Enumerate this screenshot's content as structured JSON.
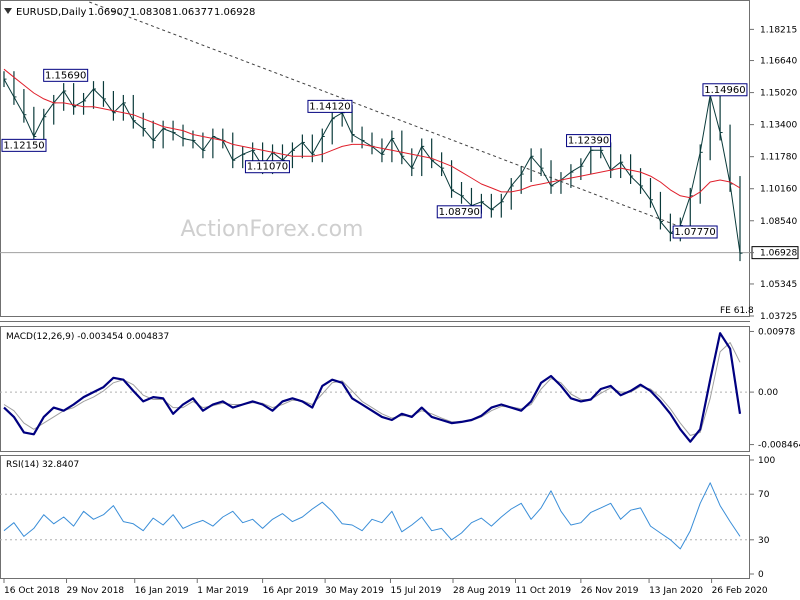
{
  "chart_data": [
    {
      "type": "line",
      "pane": "price",
      "symbol_label": "EURUSD,Daily",
      "ohlc": {
        "open": "1.06907",
        "high": "1.08308",
        "low": "1.06377",
        "close": "1.06928"
      },
      "last_price": "1.06928",
      "ylim": [
        1.03725,
        1.1965
      ],
      "y_ticks": [
        "1.18215",
        "1.16640",
        "1.15020",
        "1.13400",
        "1.11780",
        "1.10160",
        "1.08540",
        "1.06928",
        "1.05345",
        "1.03725"
      ],
      "watermark": "ActionForex.com",
      "fe_label": "FE 61.8",
      "annotations": [
        {
          "text": "1.15690",
          "day": 42,
          "price": 1.1569
        },
        {
          "text": "1.12150",
          "day": 0,
          "price": 1.1215
        },
        {
          "text": "1.14120",
          "day": 228,
          "price": 1.1412
        },
        {
          "text": "1.11070",
          "day": 184,
          "price": 1.1107
        },
        {
          "text": "1.08790",
          "day": 319,
          "price": 1.0879
        },
        {
          "text": "1.12390",
          "day": 410,
          "price": 1.1239
        },
        {
          "text": "1.07770",
          "day": 485,
          "price": 1.0777
        },
        {
          "text": "1.14960",
          "day": 506,
          "price": 1.1496
        }
      ],
      "series": [
        {
          "kind": "price",
          "x": [
            0,
            7,
            14,
            21,
            28,
            35,
            42,
            49,
            56,
            63,
            70,
            77,
            84,
            91,
            98,
            105,
            112,
            119,
            126,
            133,
            140,
            147,
            154,
            161,
            168,
            175,
            182,
            189,
            196,
            203,
            210,
            217,
            224,
            231,
            238,
            245,
            252,
            259,
            266,
            273,
            280,
            287,
            294,
            301,
            308,
            315,
            322,
            329,
            336,
            343,
            350,
            357,
            364,
            371,
            378,
            385,
            392,
            399,
            406,
            413,
            420,
            427,
            434,
            441,
            448,
            455,
            462,
            469,
            476,
            483,
            490,
            497,
            504,
            511,
            518
          ],
          "values": [
            1.157,
            1.148,
            1.139,
            1.128,
            1.138,
            1.145,
            1.151,
            1.143,
            1.146,
            1.152,
            1.147,
            1.14,
            1.145,
            1.136,
            1.132,
            1.126,
            1.132,
            1.13,
            1.127,
            1.126,
            1.121,
            1.128,
            1.126,
            1.116,
            1.119,
            1.121,
            1.113,
            1.12,
            1.116,
            1.121,
            1.125,
            1.119,
            1.128,
            1.137,
            1.14,
            1.129,
            1.126,
            1.123,
            1.119,
            1.127,
            1.118,
            1.112,
            1.123,
            1.116,
            1.112,
            1.101,
            1.098,
            1.093,
            1.095,
            1.091,
            1.095,
            1.103,
            1.109,
            1.118,
            1.112,
            1.103,
            1.106,
            1.11,
            1.113,
            1.121,
            1.121,
            1.111,
            1.115,
            1.108,
            1.103,
            1.096,
            1.085,
            1.079,
            1.083,
            1.098,
            1.12,
            1.149,
            1.13,
            1.104,
            1.069
          ]
        },
        {
          "kind": "sma",
          "x": [
            0,
            7,
            14,
            21,
            28,
            35,
            42,
            49,
            56,
            63,
            70,
            77,
            84,
            91,
            98,
            105,
            112,
            119,
            126,
            133,
            140,
            147,
            154,
            161,
            168,
            175,
            182,
            189,
            196,
            203,
            210,
            217,
            224,
            231,
            238,
            245,
            252,
            259,
            266,
            273,
            280,
            287,
            294,
            301,
            308,
            315,
            322,
            329,
            336,
            343,
            350,
            357,
            364,
            371,
            378,
            385,
            392,
            399,
            406,
            413,
            420,
            427,
            434,
            441,
            448,
            455,
            462,
            469,
            476,
            483,
            490,
            497,
            504,
            511,
            518
          ],
          "values": [
            1.162,
            1.158,
            1.154,
            1.15,
            1.147,
            1.145,
            1.145,
            1.144,
            1.143,
            1.143,
            1.142,
            1.141,
            1.14,
            1.139,
            1.137,
            1.135,
            1.133,
            1.132,
            1.131,
            1.129,
            1.128,
            1.127,
            1.126,
            1.124,
            1.123,
            1.122,
            1.121,
            1.12,
            1.119,
            1.118,
            1.118,
            1.118,
            1.119,
            1.121,
            1.123,
            1.124,
            1.124,
            1.123,
            1.122,
            1.121,
            1.12,
            1.119,
            1.118,
            1.117,
            1.115,
            1.113,
            1.11,
            1.107,
            1.104,
            1.102,
            1.1,
            1.1,
            1.101,
            1.103,
            1.104,
            1.105,
            1.106,
            1.107,
            1.108,
            1.109,
            1.11,
            1.111,
            1.112,
            1.111,
            1.11,
            1.108,
            1.105,
            1.101,
            1.098,
            1.097,
            1.1,
            1.105,
            1.106,
            1.105,
            1.102
          ]
        },
        {
          "kind": "trendline",
          "x": [
            60,
            493
          ],
          "values": [
            1.196,
            1.0777
          ]
        }
      ]
    },
    {
      "type": "line",
      "pane": "macd",
      "label": "MACD(12,26,9) -0.003454 0.004837",
      "ylim": [
        -0.0095,
        0.0105
      ],
      "y_ticks": [
        "0.00978",
        "0.00",
        "-0.008464"
      ],
      "series": [
        {
          "kind": "macd",
          "x": [
            0,
            7,
            14,
            21,
            28,
            35,
            42,
            49,
            56,
            63,
            70,
            77,
            84,
            91,
            98,
            105,
            112,
            119,
            126,
            133,
            140,
            147,
            154,
            161,
            168,
            175,
            182,
            189,
            196,
            203,
            210,
            217,
            224,
            231,
            238,
            245,
            252,
            259,
            266,
            273,
            280,
            287,
            294,
            301,
            308,
            315,
            322,
            329,
            336,
            343,
            350,
            357,
            364,
            371,
            378,
            385,
            392,
            399,
            406,
            413,
            420,
            427,
            434,
            441,
            448,
            455,
            462,
            469,
            476,
            483,
            490,
            497,
            504,
            511,
            518
          ],
          "values": [
            -0.0025,
            -0.004,
            -0.0065,
            -0.0068,
            -0.004,
            -0.0025,
            -0.003,
            -0.002,
            -0.0008,
            -0.0,
            0.0008,
            0.0023,
            0.002,
            0.0002,
            -0.0015,
            -0.0008,
            -0.001,
            -0.0035,
            -0.002,
            -0.001,
            -0.003,
            -0.002,
            -0.0015,
            -0.0025,
            -0.002,
            -0.0015,
            -0.002,
            -0.003,
            -0.0015,
            -0.001,
            -0.0015,
            -0.0025,
            0.001,
            0.002,
            0.0015,
            -0.001,
            -0.002,
            -0.003,
            -0.004,
            -0.0045,
            -0.0035,
            -0.004,
            -0.0025,
            -0.004,
            -0.0045,
            -0.005,
            -0.0048,
            -0.0045,
            -0.0038,
            -0.0025,
            -0.002,
            -0.0025,
            -0.003,
            -0.0015,
            0.0015,
            0.0026,
            0.001,
            -0.001,
            -0.0015,
            -0.0012,
            0.0005,
            0.001,
            -0.0005,
            0.0002,
            0.0012,
            0.0002,
            -0.0015,
            -0.0035,
            -0.006,
            -0.008,
            -0.006,
            0.002,
            0.0095,
            0.007,
            -0.0035
          ]
        },
        {
          "kind": "signal",
          "x": [
            0,
            7,
            14,
            21,
            28,
            35,
            42,
            49,
            56,
            63,
            70,
            77,
            84,
            91,
            98,
            105,
            112,
            119,
            126,
            133,
            140,
            147,
            154,
            161,
            168,
            175,
            182,
            189,
            196,
            203,
            210,
            217,
            224,
            231,
            238,
            245,
            252,
            259,
            266,
            273,
            280,
            287,
            294,
            301,
            308,
            315,
            322,
            329,
            336,
            343,
            350,
            357,
            364,
            371,
            378,
            385,
            392,
            399,
            406,
            413,
            420,
            427,
            434,
            441,
            448,
            455,
            462,
            469,
            476,
            483,
            490,
            497,
            504,
            511,
            518
          ],
          "values": [
            -0.002,
            -0.003,
            -0.005,
            -0.006,
            -0.005,
            -0.004,
            -0.003,
            -0.0025,
            -0.0015,
            -0.0008,
            0.0002,
            0.0015,
            0.002,
            0.0012,
            -0.0005,
            -0.0012,
            -0.0012,
            -0.0025,
            -0.0025,
            -0.0015,
            -0.0025,
            -0.0022,
            -0.0018,
            -0.002,
            -0.002,
            -0.0017,
            -0.0018,
            -0.0025,
            -0.002,
            -0.0013,
            -0.0014,
            -0.002,
            -0.0003,
            0.0015,
            0.0018,
            0.0002,
            -0.0015,
            -0.0025,
            -0.0035,
            -0.0042,
            -0.0038,
            -0.0038,
            -0.003,
            -0.0035,
            -0.0042,
            -0.0048,
            -0.0048,
            -0.0046,
            -0.004,
            -0.003,
            -0.0023,
            -0.0024,
            -0.0027,
            -0.002,
            0.0005,
            0.0022,
            0.0015,
            -0.0003,
            -0.0012,
            -0.0012,
            -0.0002,
            0.0007,
            0.0,
            0.0,
            0.0009,
            0.0005,
            -0.0008,
            -0.0027,
            -0.005,
            -0.007,
            -0.0065,
            -0.001,
            0.0065,
            0.008,
            0.0048
          ]
        }
      ]
    },
    {
      "type": "line",
      "pane": "rsi",
      "label": "RSI(14) 32.8407",
      "ylim": [
        0,
        100
      ],
      "y_ticks": [
        "100",
        "70",
        "30",
        "0"
      ],
      "levels": [
        70,
        30
      ],
      "series": [
        {
          "kind": "rsi",
          "x": [
            0,
            7,
            14,
            21,
            28,
            35,
            42,
            49,
            56,
            63,
            70,
            77,
            84,
            91,
            98,
            105,
            112,
            119,
            126,
            133,
            140,
            147,
            154,
            161,
            168,
            175,
            182,
            189,
            196,
            203,
            210,
            217,
            224,
            231,
            238,
            245,
            252,
            259,
            266,
            273,
            280,
            287,
            294,
            301,
            308,
            315,
            322,
            329,
            336,
            343,
            350,
            357,
            364,
            371,
            378,
            385,
            392,
            399,
            406,
            413,
            420,
            427,
            434,
            441,
            448,
            455,
            462,
            469,
            476,
            483,
            490,
            497,
            504,
            511,
            518
          ],
          "values": [
            38,
            45,
            33,
            40,
            52,
            44,
            50,
            42,
            55,
            48,
            52,
            60,
            46,
            44,
            38,
            49,
            43,
            52,
            40,
            44,
            47,
            42,
            50,
            55,
            45,
            48,
            40,
            48,
            53,
            46,
            50,
            57,
            63,
            55,
            44,
            43,
            38,
            48,
            45,
            55,
            37,
            43,
            50,
            38,
            40,
            30,
            36,
            45,
            49,
            42,
            50,
            57,
            62,
            48,
            58,
            73,
            55,
            43,
            45,
            54,
            58,
            62,
            48,
            56,
            58,
            42,
            36,
            30,
            22,
            38,
            62,
            80,
            60,
            46,
            33
          ]
        }
      ]
    }
  ],
  "x_axis": {
    "labels": [
      "16 Oct 2018",
      "29 Nov 2018",
      "16 Jan 2019",
      "1 Mar 2019",
      "16 Apr 2019",
      "30 May 2019",
      "15 Jul 2019",
      "28 Aug 2019",
      "11 Oct 2019",
      "26 Nov 2019",
      "13 Jan 2020",
      "26 Feb 2020"
    ],
    "label_days": [
      0,
      44,
      92,
      136,
      182,
      226,
      272,
      316,
      360,
      406,
      454,
      498
    ]
  },
  "colors": {
    "price": "#0a3a3a",
    "sma": "#e0202c",
    "macd": "#000080",
    "signal": "#a0a0a0",
    "rsi": "#3a8ed8",
    "trendline": "#404040",
    "watermark": "#cfcfcf",
    "label_border": "#000080",
    "grid": "#b0b0b0"
  }
}
